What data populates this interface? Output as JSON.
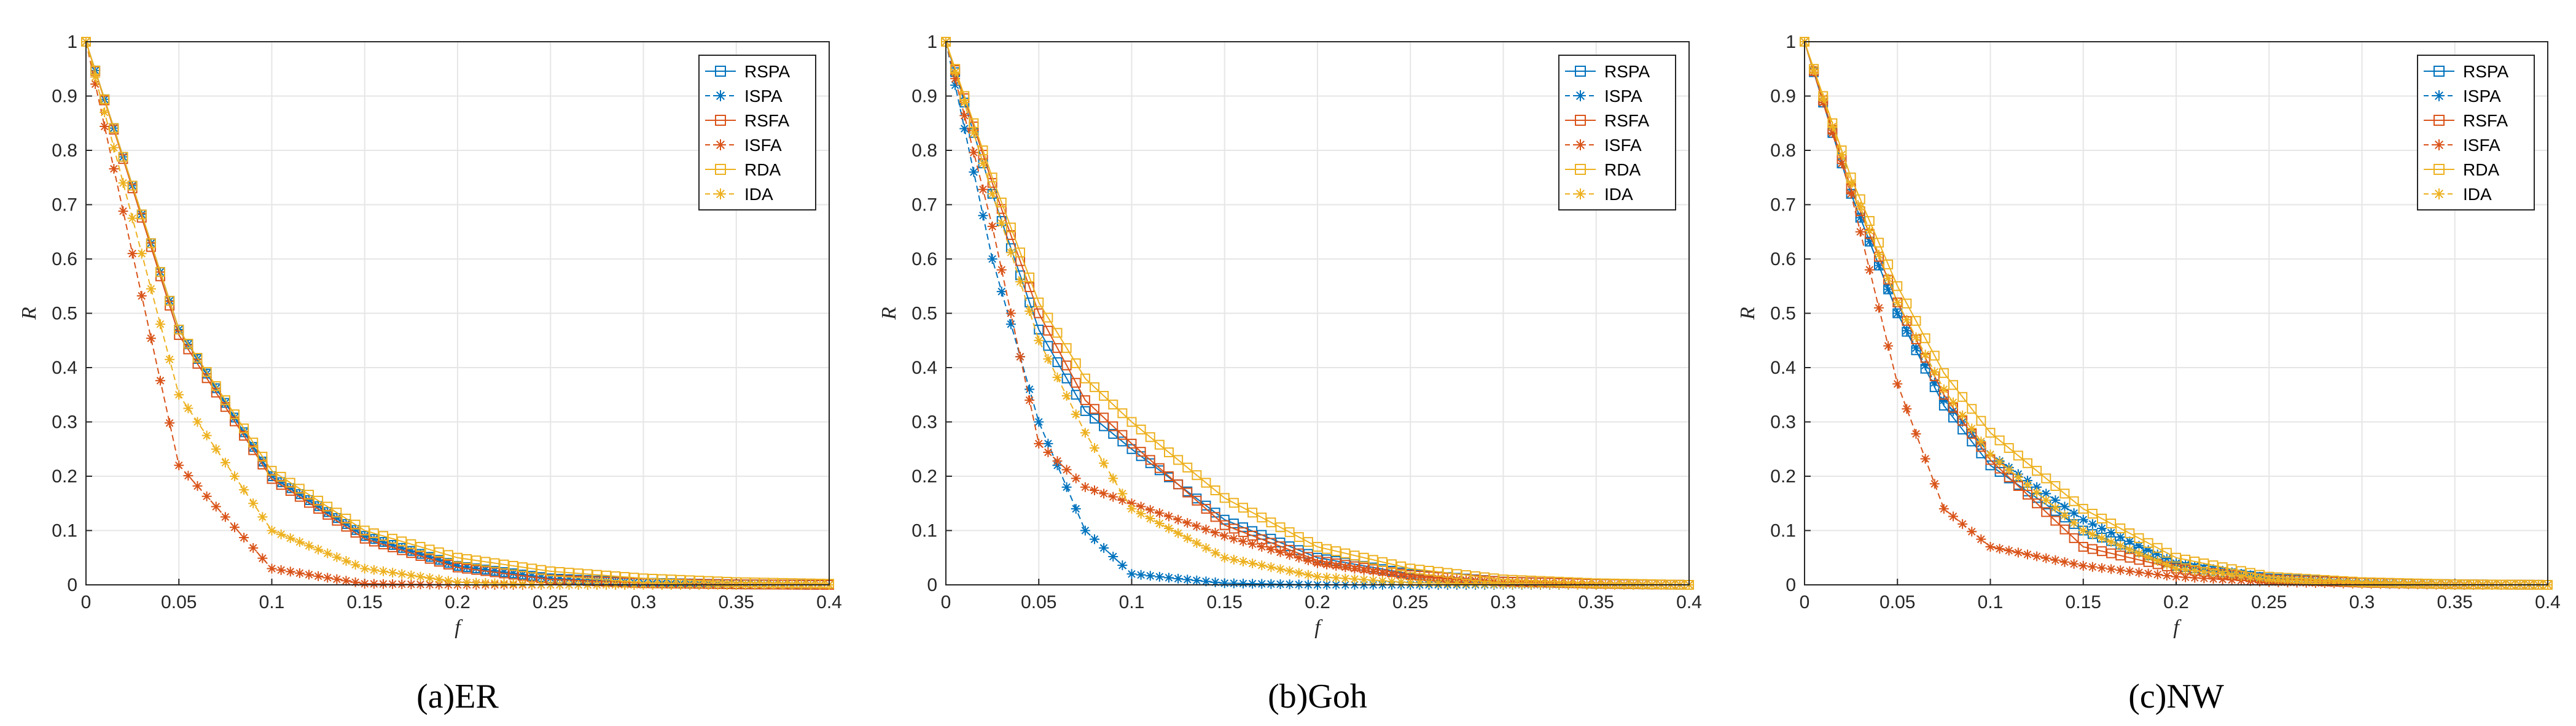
{
  "colors": {
    "SPA": "#0072BD",
    "SFA": "#D95319",
    "DA": "#EDB120",
    "grid": "#e6e6e6",
    "axis": "#262626"
  },
  "legend": [
    "RSPA",
    "ISPA",
    "RSFA",
    "ISFA",
    "RDA",
    "IDA"
  ],
  "chart_data": [
    {
      "type": "line",
      "panel": "(a)ER",
      "caption": "(a)ER",
      "xlabel": "f",
      "ylabel": "R",
      "xlim": [
        0,
        0.4
      ],
      "ylim": [
        0,
        1
      ],
      "grid": true,
      "legend_position": "top-right",
      "xticks": [
        "0",
        "0.05",
        "0.1",
        "0.15",
        "0.2",
        "0.25",
        "0.3",
        "0.35",
        "0.4"
      ],
      "yticks": [
        "0",
        "0.1",
        "0.2",
        "0.3",
        "0.4",
        "0.5",
        "0.6",
        "0.7",
        "0.8",
        "0.9",
        "1"
      ],
      "x": [
        0,
        0.05,
        0.1,
        0.15,
        0.2,
        0.25,
        0.3,
        0.35,
        0.4
      ],
      "series": [
        {
          "name": "RSPA",
          "values": [
            1.0,
            0.47,
            0.2,
            0.09,
            0.035,
            0.012,
            0.004,
            0.001,
            0.0
          ]
        },
        {
          "name": "ISPA",
          "values": [
            1.0,
            0.47,
            0.2,
            0.09,
            0.035,
            0.012,
            0.004,
            0.001,
            0.0
          ]
        },
        {
          "name": "RSFA",
          "values": [
            1.0,
            0.46,
            0.195,
            0.085,
            0.032,
            0.01,
            0.003,
            0.001,
            0.0
          ]
        },
        {
          "name": "ISFA",
          "values": [
            1.0,
            0.22,
            0.03,
            0.002,
            0.0,
            0.0,
            0.0,
            0.0,
            0.0
          ]
        },
        {
          "name": "RDA",
          "values": [
            1.0,
            0.47,
            0.21,
            0.1,
            0.05,
            0.025,
            0.012,
            0.005,
            0.002
          ]
        },
        {
          "name": "IDA",
          "values": [
            1.0,
            0.35,
            0.1,
            0.03,
            0.005,
            0.0,
            0.0,
            0.0,
            0.0
          ]
        }
      ]
    },
    {
      "type": "line",
      "panel": "(b)Goh",
      "caption": "(b)Goh",
      "xlabel": "f",
      "ylabel": "R",
      "xlim": [
        0,
        0.4
      ],
      "ylim": [
        0,
        1
      ],
      "grid": true,
      "legend_position": "top-right",
      "xticks": [
        "0",
        "0.05",
        "0.1",
        "0.15",
        "0.2",
        "0.25",
        "0.3",
        "0.35",
        "0.4"
      ],
      "yticks": [
        "0",
        "0.1",
        "0.2",
        "0.3",
        "0.4",
        "0.5",
        "0.6",
        "0.7",
        "0.8",
        "0.9",
        "1"
      ],
      "x": [
        0,
        0.025,
        0.05,
        0.075,
        0.1,
        0.15,
        0.2,
        0.25,
        0.3,
        0.35,
        0.4
      ],
      "series": [
        {
          "name": "RSPA",
          "values": [
            1.0,
            0.72,
            0.47,
            0.32,
            0.25,
            0.12,
            0.05,
            0.02,
            0.006,
            0.002,
            0.0
          ]
        },
        {
          "name": "ISPA",
          "values": [
            1.0,
            0.6,
            0.3,
            0.1,
            0.02,
            0.003,
            0.0,
            0.0,
            0.0,
            0.0,
            0.0
          ]
        },
        {
          "name": "RSFA",
          "values": [
            1.0,
            0.74,
            0.5,
            0.34,
            0.26,
            0.11,
            0.045,
            0.018,
            0.006,
            0.002,
            0.0
          ]
        },
        {
          "name": "ISFA",
          "values": [
            1.0,
            0.66,
            0.26,
            0.18,
            0.15,
            0.09,
            0.04,
            0.015,
            0.005,
            0.001,
            0.0
          ]
        },
        {
          "name": "RDA",
          "values": [
            1.0,
            0.75,
            0.52,
            0.38,
            0.3,
            0.16,
            0.07,
            0.03,
            0.01,
            0.003,
            0.0
          ]
        },
        {
          "name": "IDA",
          "values": [
            1.0,
            0.72,
            0.45,
            0.28,
            0.14,
            0.05,
            0.015,
            0.004,
            0.001,
            0.0,
            0.0
          ]
        }
      ]
    },
    {
      "type": "line",
      "panel": "(c)NW",
      "caption": "(c)NW",
      "xlabel": "f",
      "ylabel": "R",
      "xlim": [
        0,
        0.4
      ],
      "ylim": [
        0,
        1
      ],
      "grid": true,
      "legend_position": "top-right",
      "xticks": [
        "0",
        "0.05",
        "0.1",
        "0.15",
        "0.2",
        "0.25",
        "0.3",
        "0.35",
        "0.4"
      ],
      "yticks": [
        "0",
        "0.1",
        "0.2",
        "0.3",
        "0.4",
        "0.5",
        "0.6",
        "0.7",
        "0.8",
        "0.9",
        "1"
      ],
      "x": [
        0,
        0.025,
        0.05,
        0.075,
        0.1,
        0.15,
        0.2,
        0.25,
        0.3,
        0.35,
        0.4
      ],
      "series": [
        {
          "name": "RSPA",
          "values": [
            1.0,
            0.72,
            0.5,
            0.33,
            0.22,
            0.1,
            0.035,
            0.012,
            0.004,
            0.001,
            0.0
          ]
        },
        {
          "name": "ISPA",
          "values": [
            1.0,
            0.72,
            0.5,
            0.34,
            0.24,
            0.12,
            0.04,
            0.012,
            0.004,
            0.001,
            0.0
          ]
        },
        {
          "name": "RSFA",
          "values": [
            1.0,
            0.73,
            0.52,
            0.35,
            0.23,
            0.07,
            0.03,
            0.01,
            0.004,
            0.001,
            0.0
          ]
        },
        {
          "name": "ISFA",
          "values": [
            1.0,
            0.72,
            0.37,
            0.14,
            0.07,
            0.035,
            0.015,
            0.005,
            0.002,
            0.0,
            0.0
          ]
        },
        {
          "name": "RDA",
          "values": [
            1.0,
            0.75,
            0.55,
            0.39,
            0.28,
            0.14,
            0.05,
            0.015,
            0.005,
            0.001,
            0.0
          ]
        },
        {
          "name": "IDA",
          "values": [
            1.0,
            0.74,
            0.52,
            0.36,
            0.24,
            0.1,
            0.03,
            0.01,
            0.003,
            0.001,
            0.0
          ]
        }
      ]
    }
  ]
}
